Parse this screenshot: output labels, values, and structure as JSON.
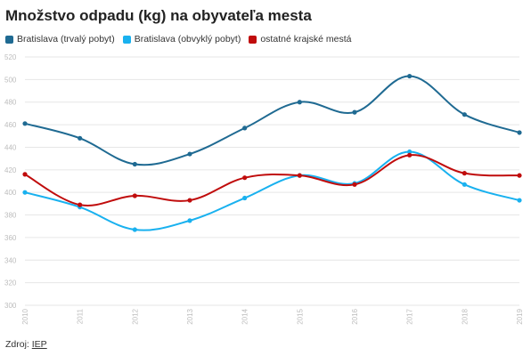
{
  "colors": {
    "background": "#ffffff",
    "grid": "#e6e6e6",
    "tick_text": "#bdbdbd",
    "title": "#222222"
  },
  "legend": {
    "items": [
      {
        "label": "Bratislava (trvalý pobyt)",
        "color": "#1f6a92"
      },
      {
        "label": "Bratislava (obvyklý pobyt)",
        "color": "#19b1ef"
      },
      {
        "label": "ostatné krajské mestá",
        "color": "#c00c0c"
      }
    ]
  },
  "source": {
    "prefix": "Zdroj:",
    "link_text": "IEP"
  },
  "chart_data": {
    "type": "line",
    "title": "Množstvo odpadu (kg) na obyvateľa mesta",
    "xlabel": "",
    "ylabel": "",
    "x": [
      "2010",
      "2011",
      "2012",
      "2013",
      "2014",
      "2015",
      "2016",
      "2017",
      "2018",
      "2019"
    ],
    "ylim": [
      300,
      520
    ],
    "yticks": [
      300,
      320,
      340,
      360,
      380,
      400,
      420,
      440,
      460,
      480,
      500,
      520
    ],
    "grid": true,
    "legend_position": "top-left",
    "series": [
      {
        "name": "Bratislava (trvalý pobyt)",
        "color": "#1f6a92",
        "values": [
          461,
          448,
          425,
          434,
          457,
          480,
          471,
          503,
          469,
          453
        ]
      },
      {
        "name": "Bratislava (obvyklý pobyt)",
        "color": "#19b1ef",
        "values": [
          400,
          387,
          367,
          375,
          395,
          415,
          408,
          436,
          407,
          393
        ]
      },
      {
        "name": "ostatné krajské mestá",
        "color": "#c00c0c",
        "values": [
          416,
          389,
          397,
          393,
          413,
          415,
          407,
          433,
          417,
          415
        ]
      }
    ]
  }
}
